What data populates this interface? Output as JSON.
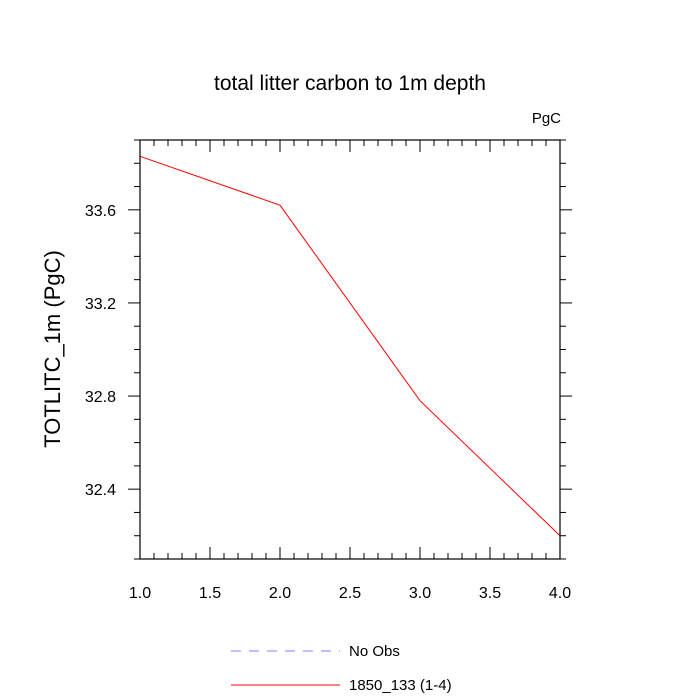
{
  "chart_data": {
    "type": "line",
    "title": "total litter carbon to 1m depth",
    "units_label": "PgC",
    "xlabel": "",
    "ylabel": "TOTLITC_1m  (PgC)",
    "xlim": [
      1.0,
      4.0
    ],
    "ylim": [
      32.1,
      33.9
    ],
    "x_ticks": [
      1.0,
      1.5,
      2.0,
      2.5,
      3.0,
      3.5,
      4.0
    ],
    "x_tick_labels": [
      "1.0",
      "1.5",
      "2.0",
      "2.5",
      "3.0",
      "3.5",
      "4.0"
    ],
    "y_ticks": [
      32.4,
      32.8,
      33.2,
      33.6
    ],
    "y_tick_labels": [
      "32.4",
      "32.8",
      "33.2",
      "33.6"
    ],
    "x": [
      1,
      2,
      3,
      4
    ],
    "series": [
      {
        "name": "1850_133 (1-4)",
        "values": [
          33.83,
          33.62,
          32.78,
          32.2
        ],
        "color": "#ff0000",
        "dash": "solid"
      }
    ],
    "legend": [
      {
        "label": "No Obs",
        "color": "#8080ff",
        "dash": "dashed"
      },
      {
        "label": "1850_133 (1-4)",
        "color": "#ff0000",
        "dash": "solid"
      }
    ],
    "legend_position": "bottom",
    "grid": false
  }
}
